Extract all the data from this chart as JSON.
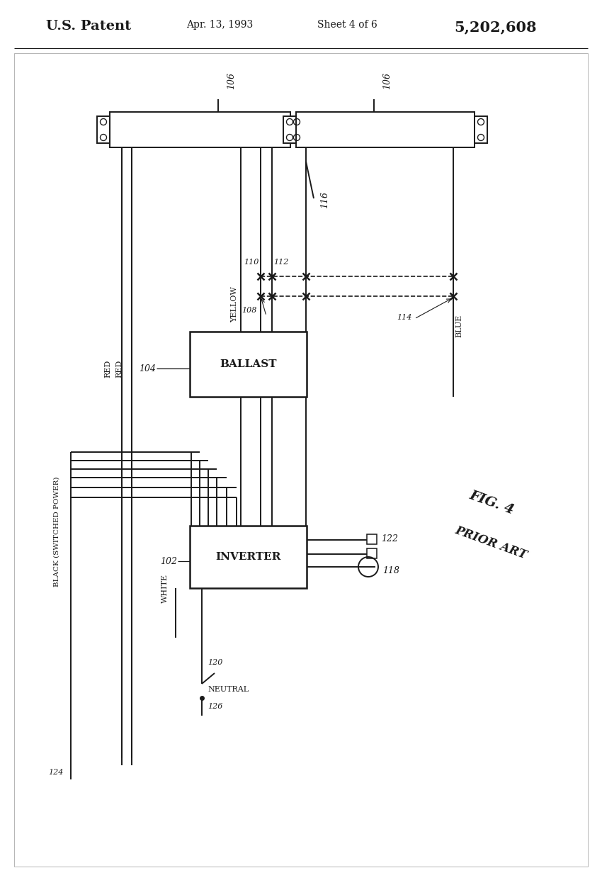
{
  "bg": "#ffffff",
  "lc": "#1a1a1a",
  "header_left": "U.S. Patent",
  "header_center": "Apr. 13, 1993",
  "header_sheet": "Sheet 4 of 6",
  "header_right": "5,202,608",
  "fig_label": "FIG. 4",
  "prior_art": "PRIOR ART",
  "ballast_label": "BALLAST",
  "inverter_label": "INVERTER",
  "ref_104": "104",
  "ref_102": "102",
  "ref_106": "106",
  "ref_108": "108",
  "ref_110": "110",
  "ref_112": "112",
  "ref_114": "114",
  "ref_116": "116",
  "ref_118": "118",
  "ref_120": "120",
  "ref_122": "122",
  "ref_124": "124",
  "ref_126": "126",
  "wire_red1": "RED",
  "wire_red2": "RED",
  "wire_yellow": "YELLOW",
  "wire_blue": "BLUE",
  "wire_white": "WHITE",
  "wire_black": "BLACK (SWITCHED POWER)",
  "wire_neutral": "NEUTRAL"
}
